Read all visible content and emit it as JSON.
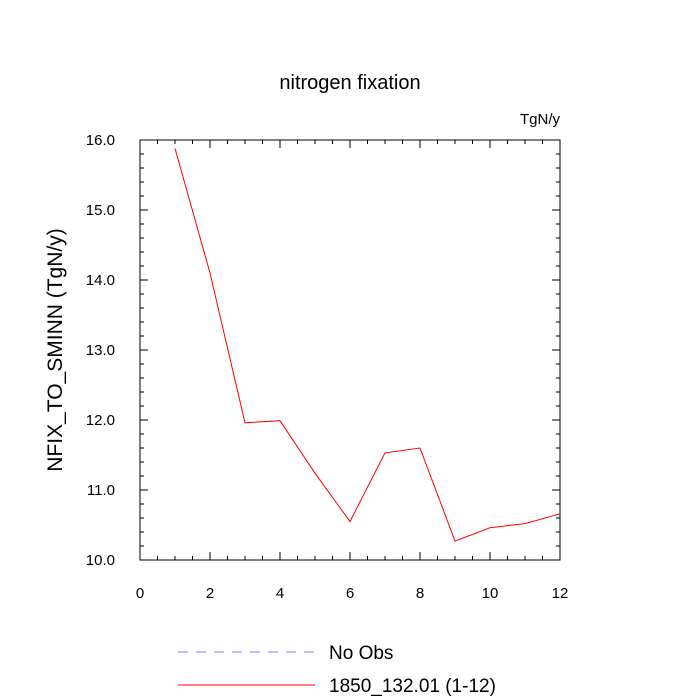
{
  "chart_data": {
    "type": "line",
    "title": "nitrogen fixation",
    "units_label": "TgN/y",
    "ylabel": "NFIX_TO_SMINN  (TgN/y)",
    "xlabel": "",
    "xlim": [
      0,
      12
    ],
    "ylim": [
      10.0,
      16.0
    ],
    "x_ticks": [
      0,
      2,
      4,
      6,
      8,
      10,
      12
    ],
    "x_tick_labels": [
      "0",
      "2",
      "4",
      "6",
      "8",
      "10",
      "12"
    ],
    "y_ticks": [
      10,
      11,
      12,
      13,
      14,
      15,
      16
    ],
    "y_tick_labels": [
      "10.0",
      "11.0",
      "12.0",
      "13.0",
      "14.0",
      "15.0",
      "16.0"
    ],
    "grid": false,
    "legend_position": "bottom",
    "series": [
      {
        "name": "1850_132.01 (1-12)",
        "color": "#ff0000",
        "style": "solid",
        "x": [
          1,
          2,
          3,
          4,
          5,
          6,
          7,
          8,
          9,
          10,
          11,
          12
        ],
        "y": [
          15.88,
          14.1,
          11.96,
          11.99,
          11.24,
          10.55,
          11.53,
          11.6,
          10.27,
          10.46,
          10.52,
          10.66
        ]
      }
    ],
    "legend": [
      {
        "label": "No Obs",
        "color": "#8080ff",
        "style": "dashed"
      },
      {
        "label": "1850_132.01 (1-12)",
        "color": "#ff0000",
        "style": "solid"
      }
    ]
  }
}
